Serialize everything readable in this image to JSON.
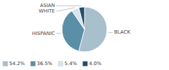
{
  "chart_data": {
    "type": "pie",
    "categories": [
      "BLACK",
      "HISPANIC",
      "WHITE",
      "ASIAN"
    ],
    "values": [
      54.2,
      36.5,
      5.4,
      4.0
    ],
    "value_labels": [
      "54.2%",
      "36.5%",
      "5.4%",
      "4.0%"
    ],
    "colors": [
      "#a8bfcc",
      "#5b8fa8",
      "#d6e4ec",
      "#1f4e6e"
    ],
    "legend": "bottom-left"
  }
}
